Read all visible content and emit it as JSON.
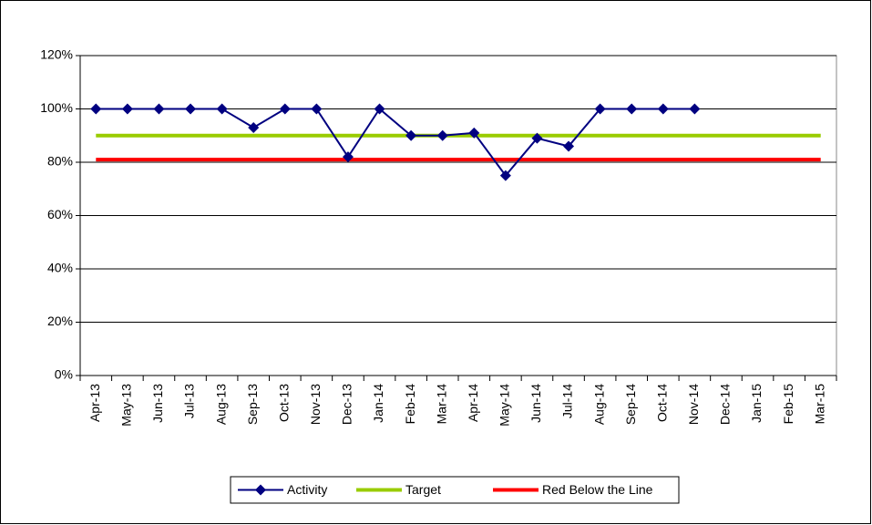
{
  "chart_data": {
    "type": "line",
    "categories": [
      "Apr-13",
      "May-13",
      "Jun-13",
      "Jul-13",
      "Aug-13",
      "Sep-13",
      "Oct-13",
      "Nov-13",
      "Dec-13",
      "Jan-14",
      "Feb-14",
      "Mar-14",
      "Apr-14",
      "May-14",
      "Jun-14",
      "Jul-14",
      "Aug-14",
      "Sep-14",
      "Oct-14",
      "Nov-14",
      "Dec-14",
      "Jan-15",
      "Feb-15",
      "Mar-15"
    ],
    "series": [
      {
        "name": "Activity",
        "color": "#000080",
        "marker": "diamond",
        "values": [
          100,
          100,
          100,
          100,
          100,
          93,
          100,
          100,
          82,
          100,
          90,
          90,
          91,
          75,
          89,
          86,
          100,
          100,
          100,
          100,
          null,
          null,
          null,
          null
        ]
      },
      {
        "name": "Target",
        "color": "#99cc00",
        "values": [
          90,
          90,
          90,
          90,
          90,
          90,
          90,
          90,
          90,
          90,
          90,
          90,
          90,
          90,
          90,
          90,
          90,
          90,
          90,
          90,
          90,
          90,
          90,
          90
        ]
      },
      {
        "name": "Red Below the Line",
        "color": "#ff0000",
        "values": [
          81,
          81,
          81,
          81,
          81,
          81,
          81,
          81,
          81,
          81,
          81,
          81,
          81,
          81,
          81,
          81,
          81,
          81,
          81,
          81,
          81,
          81,
          81,
          81
        ]
      }
    ],
    "ylim": [
      0,
      120
    ],
    "yticks": [
      {
        "value": 0,
        "label": "0%"
      },
      {
        "value": 20,
        "label": "20%"
      },
      {
        "value": 40,
        "label": "40%"
      },
      {
        "value": 60,
        "label": "60%"
      },
      {
        "value": 80,
        "label": "80%"
      },
      {
        "value": 100,
        "label": "100%"
      },
      {
        "value": 120,
        "label": "120%"
      }
    ],
    "grid": true,
    "legend": "bottom"
  }
}
